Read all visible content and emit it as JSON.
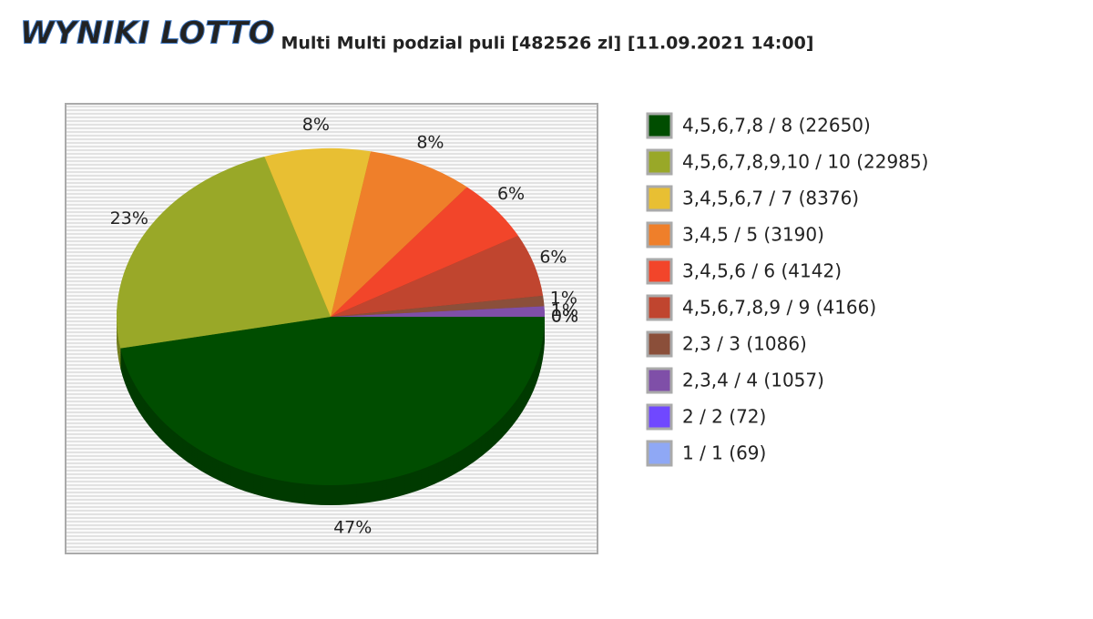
{
  "logo": "WYNIKI LOTTO",
  "chart_data": {
    "type": "pie",
    "title": "Multi Multi podzial puli [482526 zl] [11.09.2021 14:00]",
    "categories": [
      "4,5,6,7,8 / 8 (22650)",
      "4,5,6,7,8,9,10 / 10 (22985)",
      "3,4,5,6,7 / 7 (8376)",
      "3,4,5 / 5 (3190)",
      "3,4,5,6 / 6 (4142)",
      "4,5,6,7,8,9 / 9 (4166)",
      "2,3 / 3 (1086)",
      "2,3,4 / 4 (1057)",
      "2 / 2 (72)",
      "1 / 1 (69)"
    ],
    "values": [
      47,
      23,
      8,
      8,
      6,
      6,
      1,
      1,
      0,
      0
    ],
    "value_labels": [
      "47%",
      "23%",
      "8%",
      "8%",
      "6%",
      "6%",
      "1%",
      "1%",
      "0%",
      "0%"
    ],
    "colors": [
      "#004d00",
      "#99a828",
      "#e8bf33",
      "#ef7f2a",
      "#f2452a",
      "#c0452f",
      "#8b4f3a",
      "#7f4fa8",
      "#7048ff",
      "#8fa8f5"
    ]
  }
}
